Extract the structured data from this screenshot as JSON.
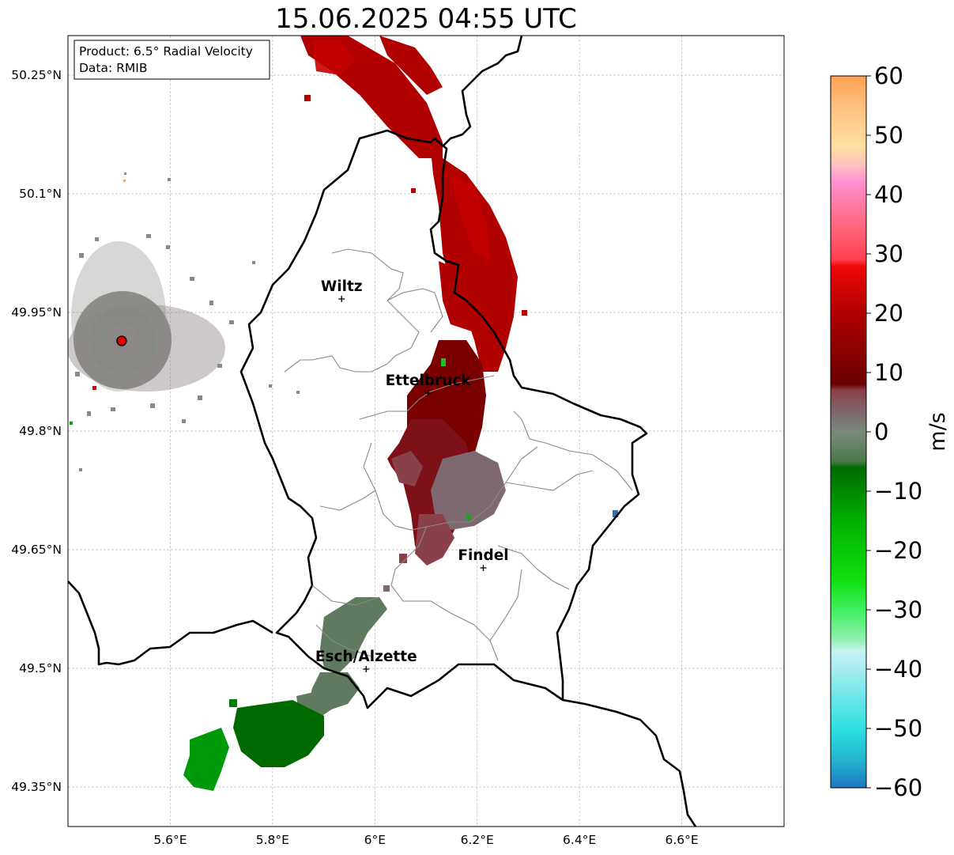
{
  "title": "15.06.2025 04:55 UTC",
  "infobox": {
    "product_line": "Product: 6.5° Radial Velocity",
    "data_line": "Data: RMIB"
  },
  "axes": {
    "lon_ticks": [
      {
        "value": 5.6,
        "label": "5.6°E"
      },
      {
        "value": 5.8,
        "label": "5.8°E"
      },
      {
        "value": 6.0,
        "label": "6°E"
      },
      {
        "value": 6.2,
        "label": "6.2°E"
      },
      {
        "value": 6.4,
        "label": "6.4°E"
      },
      {
        "value": 6.6,
        "label": "6.6°E"
      }
    ],
    "lat_ticks": [
      {
        "value": 50.25,
        "label": "50.25°N"
      },
      {
        "value": 50.1,
        "label": "50.1°N"
      },
      {
        "value": 49.95,
        "label": "49.95°N"
      },
      {
        "value": 49.8,
        "label": "49.8°N"
      },
      {
        "value": 49.65,
        "label": "49.65°N"
      },
      {
        "value": 49.5,
        "label": "49.5°N"
      },
      {
        "value": 49.35,
        "label": "49.35°N"
      }
    ],
    "lon_range": [
      5.4,
      6.8
    ],
    "lat_range": [
      49.3,
      50.3
    ],
    "grid": true
  },
  "cities": [
    {
      "name": "Wiltz",
      "lon": 5.935,
      "lat": 49.967
    },
    {
      "name": "Ettelbruck",
      "lon": 6.104,
      "lat": 49.848
    },
    {
      "name": "Findel",
      "lon": 6.212,
      "lat": 49.627
    },
    {
      "name": "Esch/Alzette",
      "lon": 5.983,
      "lat": 49.499
    }
  ],
  "radar_site": {
    "lon": 5.505,
    "lat": 49.914,
    "color": "#e00000"
  },
  "colorbar": {
    "label": "m/s",
    "min": -60,
    "max": 60,
    "ticks": [
      {
        "value": 60,
        "label": "60"
      },
      {
        "value": 50,
        "label": "50"
      },
      {
        "value": 40,
        "label": "40"
      },
      {
        "value": 30,
        "label": "30"
      },
      {
        "value": 20,
        "label": "20"
      },
      {
        "value": 10,
        "label": "10"
      },
      {
        "value": 0,
        "label": "0"
      },
      {
        "value": -10,
        "label": "−10"
      },
      {
        "value": -20,
        "label": "−20"
      },
      {
        "value": -30,
        "label": "−30"
      },
      {
        "value": -40,
        "label": "−40"
      },
      {
        "value": -50,
        "label": "−50"
      },
      {
        "value": -60,
        "label": "−60"
      }
    ],
    "stops": [
      {
        "value": -60,
        "color": "#1f77c0"
      },
      {
        "value": -55,
        "color": "#22b8d0"
      },
      {
        "value": -50,
        "color": "#2fe0e0"
      },
      {
        "value": -40,
        "color": "#a6ecf0"
      },
      {
        "value": -37,
        "color": "#c8f2f2"
      },
      {
        "value": -35,
        "color": "#90f0b0"
      },
      {
        "value": -30,
        "color": "#40f060"
      },
      {
        "value": -25,
        "color": "#10e010"
      },
      {
        "value": -15,
        "color": "#00b000"
      },
      {
        "value": -6,
        "color": "#006a00"
      },
      {
        "value": -5,
        "color": "#4a7a4a"
      },
      {
        "value": 0,
        "color": "#7a8a7a"
      },
      {
        "value": 3,
        "color": "#7d6a70"
      },
      {
        "value": 7,
        "color": "#8a4048"
      },
      {
        "value": 8,
        "color": "#6a0000"
      },
      {
        "value": 20,
        "color": "#b00000"
      },
      {
        "value": 28,
        "color": "#f00808"
      },
      {
        "value": 29,
        "color": "#ff4050"
      },
      {
        "value": 35,
        "color": "#ff6880"
      },
      {
        "value": 42,
        "color": "#ff90d0"
      },
      {
        "value": 45,
        "color": "#ffc0c0"
      },
      {
        "value": 48,
        "color": "#ffe0a0"
      },
      {
        "value": 55,
        "color": "#ffc080"
      },
      {
        "value": 60,
        "color": "#ffa050"
      }
    ]
  }
}
